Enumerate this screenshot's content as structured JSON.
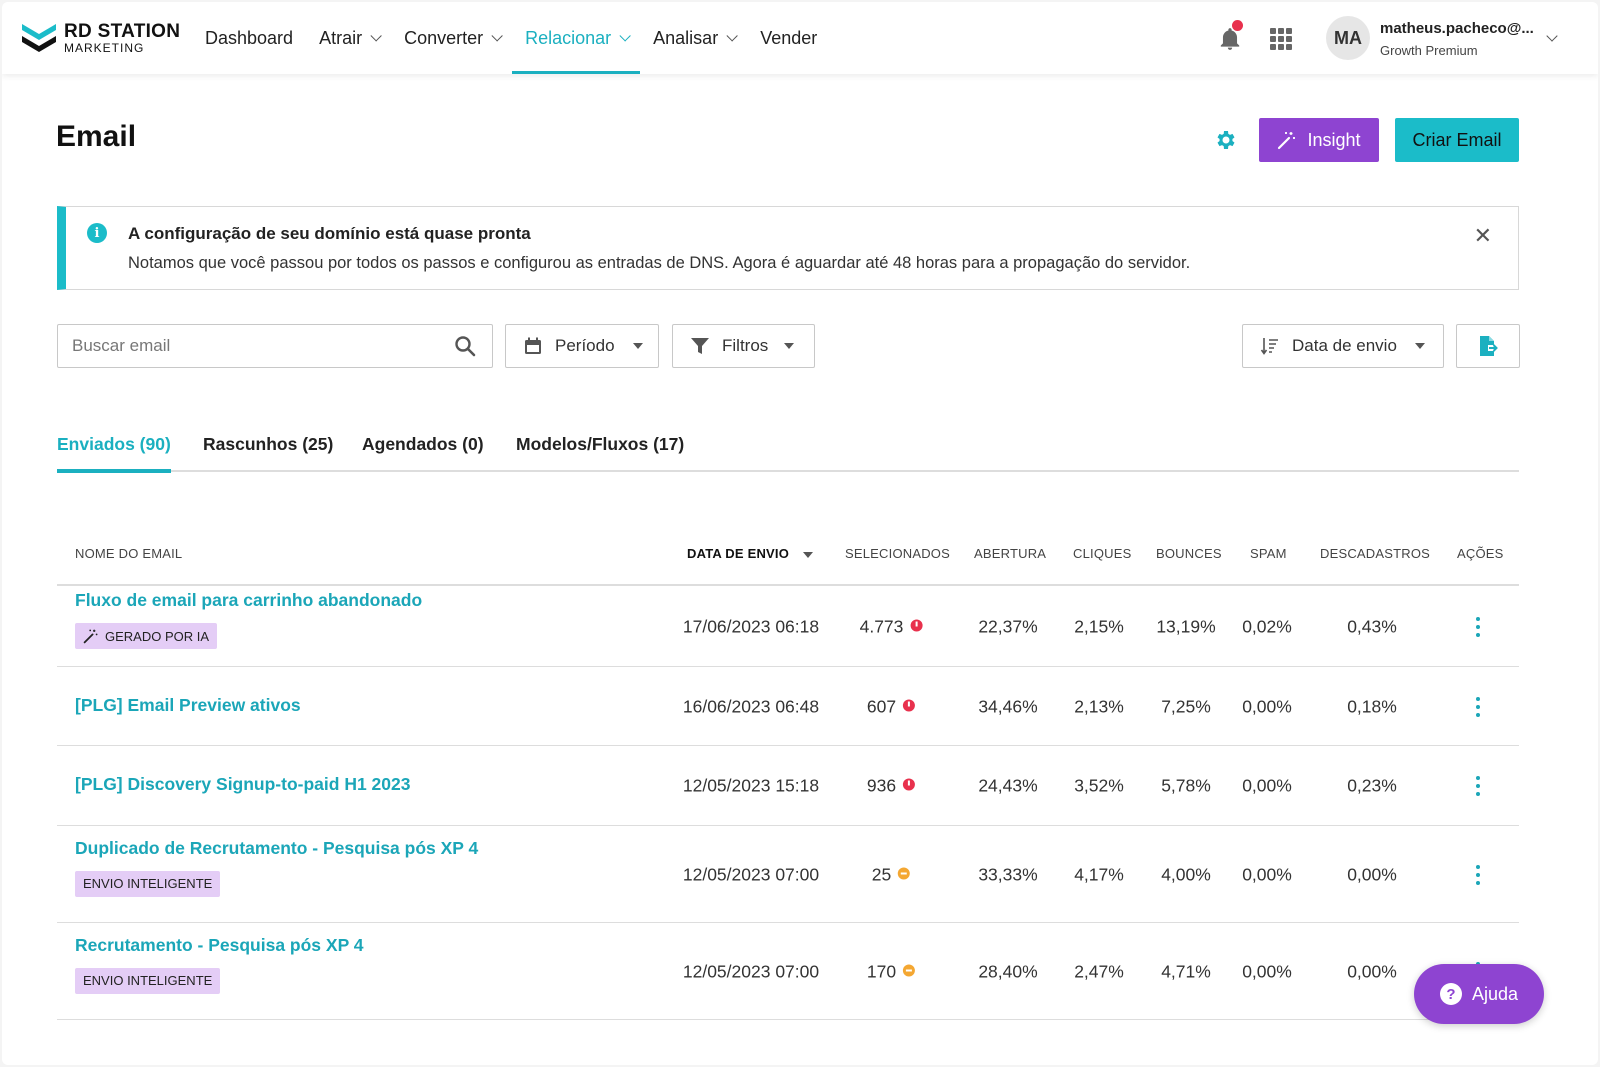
{
  "brand": {
    "line1": "RD STATION",
    "line2": "MARKETING"
  },
  "nav": {
    "items": [
      {
        "label": "Dashboard",
        "dropdown": false,
        "active": false
      },
      {
        "label": "Atrair",
        "dropdown": true,
        "active": false
      },
      {
        "label": "Converter",
        "dropdown": true,
        "active": false
      },
      {
        "label": "Relacionar",
        "dropdown": true,
        "active": true
      },
      {
        "label": "Analisar",
        "dropdown": true,
        "active": false
      },
      {
        "label": "Vender",
        "dropdown": false,
        "active": false
      }
    ]
  },
  "user": {
    "initials": "MA",
    "name": "matheus.pacheco@...",
    "plan": "Growth Premium"
  },
  "header": {
    "title": "Email",
    "insight_label": "Insight",
    "create_label": "Criar Email"
  },
  "alert": {
    "title": "A configuração de seu domínio está quase pronta",
    "text": "Notamos que você passou por todos os passos e configurou as entradas de DNS. Agora é aguardar até 48 horas para a propagação do servidor."
  },
  "filters": {
    "search_placeholder": "Buscar email",
    "period_label": "Período",
    "filters_label": "Filtros",
    "sort_label": "Data de envio"
  },
  "tabs": [
    {
      "label": "Enviados (90)",
      "active": true
    },
    {
      "label": "Rascunhos (25)",
      "active": false
    },
    {
      "label": "Agendados (0)",
      "active": false
    },
    {
      "label": "Modelos/Fluxos (17)",
      "active": false
    }
  ],
  "table": {
    "columns": {
      "name": "NOME DO EMAIL",
      "date": "DATA DE ENVIO",
      "selected": "SELECIONADOS",
      "open": "ABERTURA",
      "clicks": "CLIQUES",
      "bounces": "BOUNCES",
      "spam": "SPAM",
      "unsub": "DESCADASTROS",
      "actions": "AÇÕES"
    },
    "rows": [
      {
        "name": "Fluxo de email para carrinho abandonado",
        "tag": "GERADO POR IA",
        "tag_icon": "magic-wand-icon",
        "date": "17/06/2023 06:18",
        "selected": "4.773",
        "status": "error",
        "open": "22,37%",
        "clicks": "2,15%",
        "bounces": "13,19%",
        "spam": "0,02%",
        "unsub": "0,43%"
      },
      {
        "name": "[PLG] Email Preview ativos",
        "tag": "",
        "date": "16/06/2023 06:48",
        "selected": "607",
        "status": "error",
        "open": "34,46%",
        "clicks": "2,13%",
        "bounces": "7,25%",
        "spam": "0,00%",
        "unsub": "0,18%"
      },
      {
        "name": "[PLG] Discovery Signup-to-paid H1 2023",
        "tag": "",
        "date": "12/05/2023 15:18",
        "selected": "936",
        "status": "error",
        "open": "24,43%",
        "clicks": "3,52%",
        "bounces": "5,78%",
        "spam": "0,00%",
        "unsub": "0,23%"
      },
      {
        "name": "Duplicado de Recrutamento - Pesquisa pós XP 4",
        "tag": "ENVIO INTELIGENTE",
        "date": "12/05/2023 07:00",
        "selected": "25",
        "status": "warning",
        "open": "33,33%",
        "clicks": "4,17%",
        "bounces": "4,00%",
        "spam": "0,00%",
        "unsub": "0,00%"
      },
      {
        "name": "Recrutamento - Pesquisa pós XP 4",
        "tag": "ENVIO INTELIGENTE",
        "date": "12/05/2023 07:00",
        "selected": "170",
        "status": "warning",
        "open": "28,40%",
        "clicks": "2,47%",
        "bounces": "4,71%",
        "spam": "0,00%",
        "unsub": "0,00%"
      }
    ]
  },
  "help": {
    "label": "Ajuda"
  },
  "colors": {
    "accent": "#1bb0c0",
    "purple": "#8e44d1",
    "error": "#e8314d",
    "warning": "#f4a732",
    "tag_bg": "#e4cdf6"
  }
}
